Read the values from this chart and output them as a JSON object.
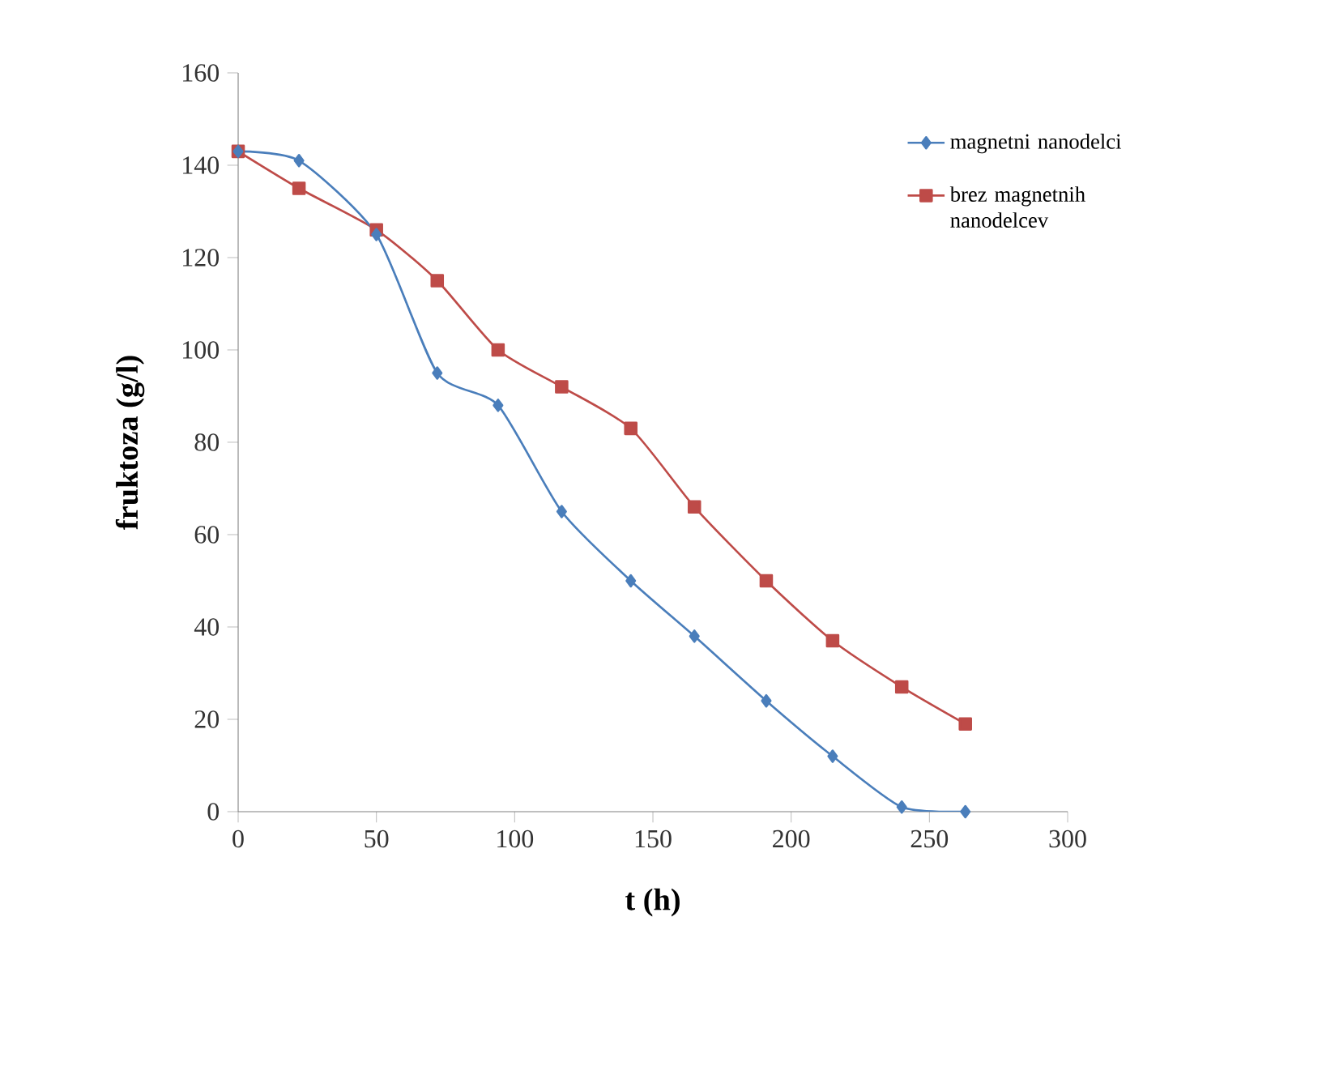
{
  "chart_data": {
    "type": "line",
    "xlabel": "t (h)",
    "ylabel": "fruktoza (g/l)",
    "series": [
      {
        "name": "magnetni nanodelci",
        "color": "#4a7ebb",
        "marker": "diamond",
        "x": [
          0,
          22,
          50,
          72,
          94,
          117,
          142,
          165,
          191,
          215,
          240,
          263
        ],
        "values": [
          143,
          141,
          125,
          95,
          88,
          65,
          50,
          38,
          24,
          12,
          1,
          0
        ]
      },
      {
        "name": "brez magnetnih nanodelcev",
        "color": "#be4b48",
        "marker": "square",
        "x": [
          0,
          22,
          50,
          72,
          94,
          117,
          142,
          165,
          191,
          215,
          240,
          263
        ],
        "values": [
          143,
          135,
          126,
          115,
          100,
          92,
          83,
          66,
          50,
          37,
          27,
          19
        ]
      }
    ],
    "xlim": [
      0,
      300
    ],
    "xticks": [
      0,
      50,
      100,
      150,
      200,
      250,
      300
    ],
    "ylim": [
      0,
      160
    ],
    "yticks": [
      0,
      20,
      40,
      60,
      80,
      100,
      120,
      140,
      160
    ],
    "grid": false,
    "legend": "top right"
  }
}
